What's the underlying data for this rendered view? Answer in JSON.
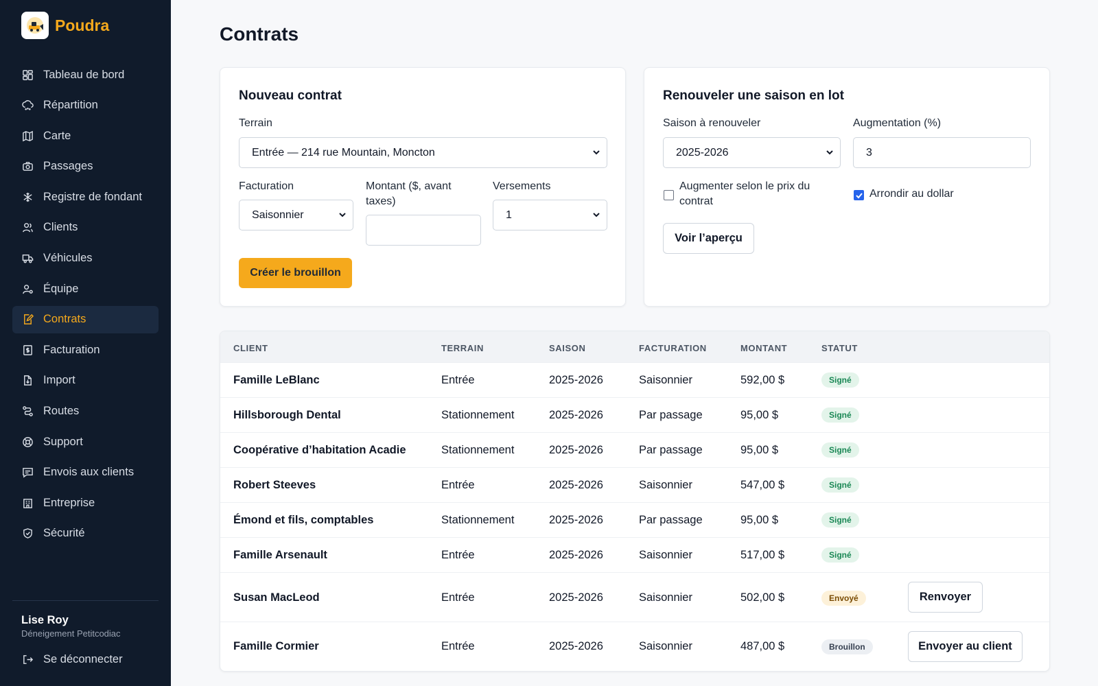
{
  "brand": {
    "name": "Poudra",
    "accent": "#f5a91c"
  },
  "sidebar": {
    "items": [
      {
        "label": "Tableau de bord",
        "icon": "dashboard-icon"
      },
      {
        "label": "Répartition",
        "icon": "cloud-snow-icon"
      },
      {
        "label": "Carte",
        "icon": "map-icon"
      },
      {
        "label": "Passages",
        "icon": "camera-icon"
      },
      {
        "label": "Registre de fondant",
        "icon": "snowflake-icon"
      },
      {
        "label": "Clients",
        "icon": "users-icon"
      },
      {
        "label": "Véhicules",
        "icon": "truck-icon"
      },
      {
        "label": "Équipe",
        "icon": "user-gear-icon"
      },
      {
        "label": "Contrats",
        "icon": "file-edit-icon",
        "active": true
      },
      {
        "label": "Facturation",
        "icon": "receipt-icon"
      },
      {
        "label": "Import",
        "icon": "file-import-icon"
      },
      {
        "label": "Routes",
        "icon": "route-icon"
      },
      {
        "label": "Support",
        "icon": "lifebuoy-icon"
      },
      {
        "label": "Envois aux clients",
        "icon": "message-icon"
      },
      {
        "label": "Entreprise",
        "icon": "building-icon"
      },
      {
        "label": "Sécurité",
        "icon": "shield-icon"
      }
    ],
    "user": {
      "name": "Lise Roy",
      "company": "Déneigement Petitcodiac"
    },
    "logout_label": "Se déconnecter"
  },
  "page": {
    "title": "Contrats"
  },
  "new_contract": {
    "title": "Nouveau contrat",
    "terrain_label": "Terrain",
    "terrain_value": "Entrée — 214 rue Mountain, Moncton",
    "billing_label": "Facturation",
    "billing_value": "Saisonnier",
    "amount_label": "Montant ($, avant taxes)",
    "amount_value": "",
    "installments_label": "Versements",
    "installments_value": "1",
    "create_button": "Créer le brouillon"
  },
  "renew": {
    "title": "Renouveler une saison en lot",
    "season_label": "Saison à renouveler",
    "season_value": "2025-2026",
    "increase_label": "Augmentation (%)",
    "increase_value": "3",
    "by_price_label": "Augmenter selon le prix du contrat",
    "by_price_checked": false,
    "round_label": "Arrondir au dollar",
    "round_checked": true,
    "preview_button": "Voir l’aperçu"
  },
  "table": {
    "headers": {
      "client": "CLIENT",
      "terrain": "TERRAIN",
      "saison": "SAISON",
      "facturation": "FACTURATION",
      "montant": "MONTANT",
      "statut": "STATUT"
    },
    "rows": [
      {
        "client": "Famille LeBlanc",
        "terrain": "Entrée",
        "saison": "2025-2026",
        "facturation": "Saisonnier",
        "montant": "592,00 $",
        "statut": "Signé",
        "status_kind": "signe",
        "action": ""
      },
      {
        "client": "Hillsborough Dental",
        "terrain": "Stationnement",
        "saison": "2025-2026",
        "facturation": "Par passage",
        "montant": "95,00 $",
        "statut": "Signé",
        "status_kind": "signe",
        "action": ""
      },
      {
        "client": "Coopérative d’habitation Acadie",
        "terrain": "Stationnement",
        "saison": "2025-2026",
        "facturation": "Par passage",
        "montant": "95,00 $",
        "statut": "Signé",
        "status_kind": "signe",
        "action": ""
      },
      {
        "client": "Robert Steeves",
        "terrain": "Entrée",
        "saison": "2025-2026",
        "facturation": "Saisonnier",
        "montant": "547,00 $",
        "statut": "Signé",
        "status_kind": "signe",
        "action": ""
      },
      {
        "client": "Émond et fils, comptables",
        "terrain": "Stationnement",
        "saison": "2025-2026",
        "facturation": "Par passage",
        "montant": "95,00 $",
        "statut": "Signé",
        "status_kind": "signe",
        "action": ""
      },
      {
        "client": "Famille Arsenault",
        "terrain": "Entrée",
        "saison": "2025-2026",
        "facturation": "Saisonnier",
        "montant": "517,00 $",
        "statut": "Signé",
        "status_kind": "signe",
        "action": ""
      },
      {
        "client": "Susan MacLeod",
        "terrain": "Entrée",
        "saison": "2025-2026",
        "facturation": "Saisonnier",
        "montant": "502,00 $",
        "statut": "Envoyé",
        "status_kind": "envoye",
        "action": "Renvoyer"
      },
      {
        "client": "Famille Cormier",
        "terrain": "Entrée",
        "saison": "2025-2026",
        "facturation": "Saisonnier",
        "montant": "487,00 $",
        "statut": "Brouillon",
        "status_kind": "brouillon",
        "action": "Envoyer au client"
      }
    ]
  }
}
